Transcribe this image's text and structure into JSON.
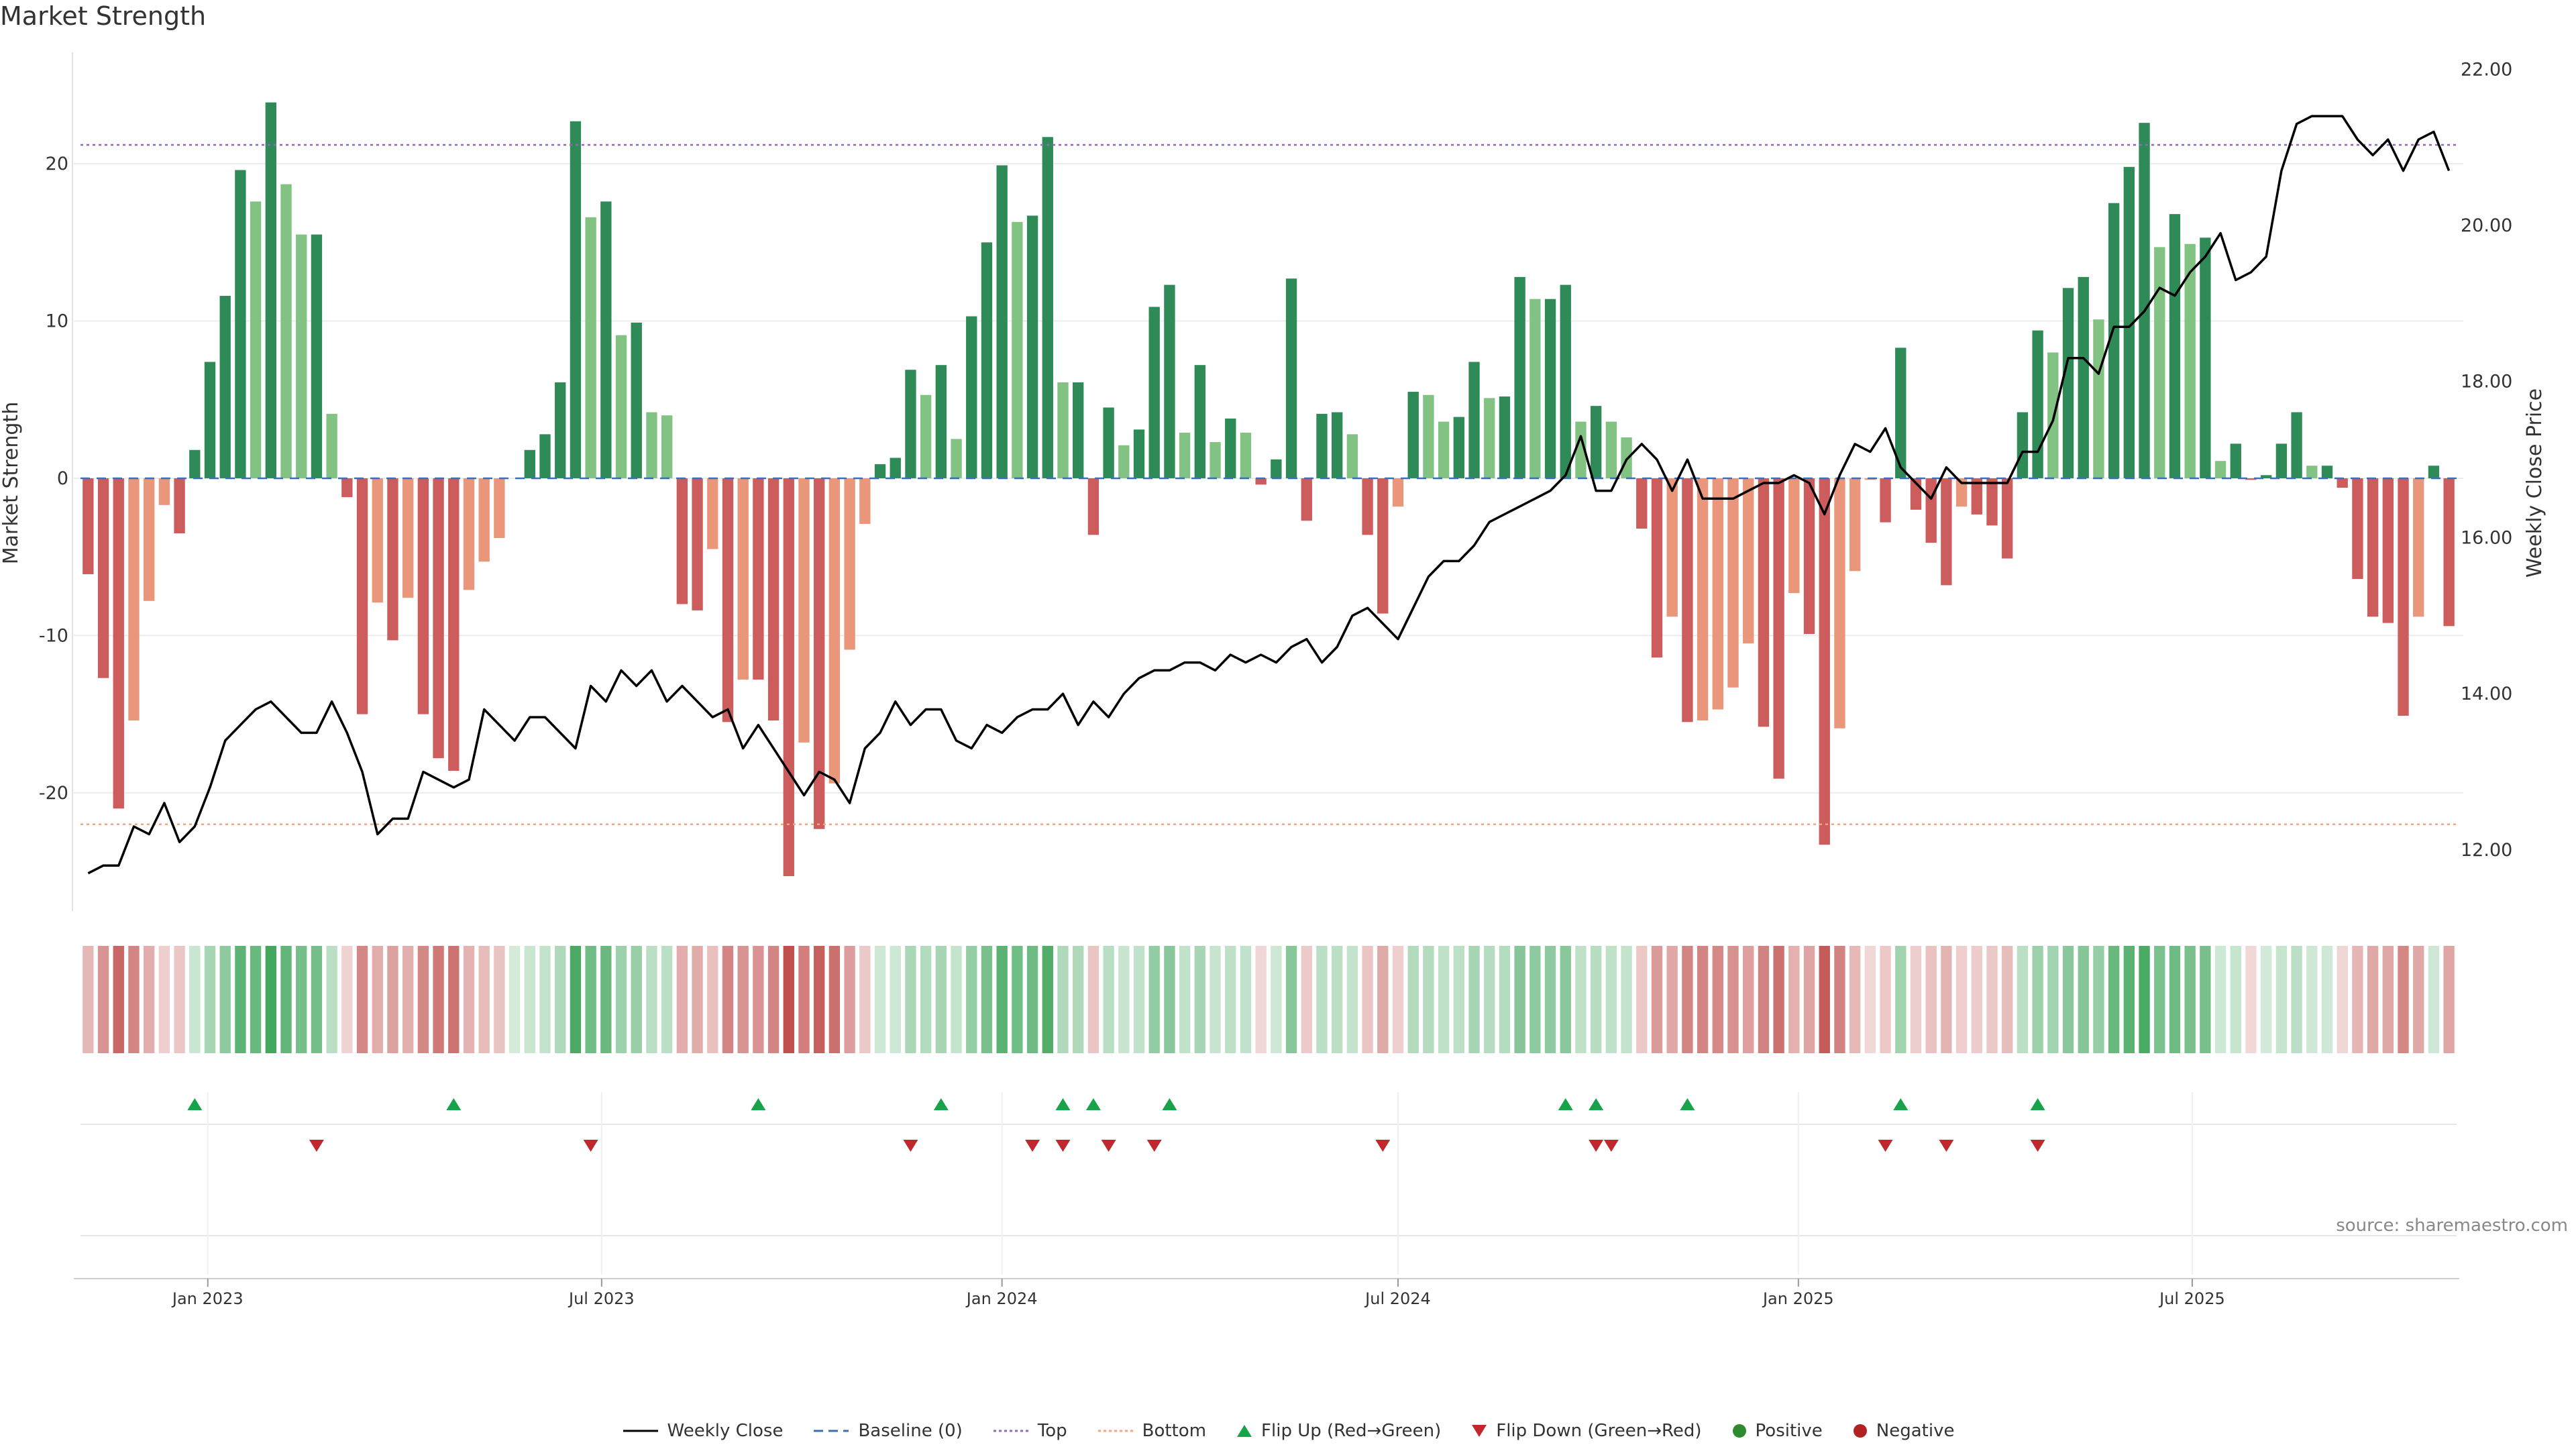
{
  "title": "Market Strength",
  "source": "source: sharemaestro.com",
  "colors": {
    "dark_green": "#2e8b57",
    "light_green": "#82c283",
    "dark_red": "#cd5c5c",
    "light_red": "#e9967a",
    "line": "#000000",
    "baseline": "#3b6fb6",
    "top": "#9467bd",
    "bottom": "#f4a582",
    "flip_up": "#16a34a",
    "flip_down": "#c0282d",
    "positive": "#2e8b2e",
    "negative": "#b22222"
  },
  "legend": [
    {
      "label": "Weekly Close",
      "icon": "line-solid-icon"
    },
    {
      "label": "Baseline (0)",
      "icon": "line-dashed-icon"
    },
    {
      "label": "Top",
      "icon": "line-dotted-purple-icon"
    },
    {
      "label": "Bottom",
      "icon": "line-dotted-orange-icon"
    },
    {
      "label": "Flip Up (Red→Green)",
      "icon": "triangle-up-icon"
    },
    {
      "label": "Flip Down (Green→Red)",
      "icon": "triangle-down-icon"
    },
    {
      "label": "Positive",
      "icon": "green-dot-icon"
    },
    {
      "label": "Negative",
      "icon": "red-dot-icon"
    }
  ],
  "chart_data": {
    "type": "bar",
    "x_start": "2022-11-07",
    "x_unit": "weeks",
    "xlabel": "",
    "ylabel": "Market Strength",
    "y2label": "Weekly Close Price",
    "ylim": [
      -27.6,
      27.0
    ],
    "y2lim": [
      11.2,
      22.2
    ],
    "yticks": [
      -20,
      -10,
      0,
      10,
      20
    ],
    "y2ticks": [
      "12.00",
      "14.00",
      "16.00",
      "18.00",
      "20.00",
      "22.00"
    ],
    "xticks": [
      {
        "date": "2023-01-01",
        "label": "Jan 2023"
      },
      {
        "date": "2023-07-01",
        "label": "Jul 2023"
      },
      {
        "date": "2024-01-01",
        "label": "Jan 2024"
      },
      {
        "date": "2024-07-01",
        "label": "Jul 2024"
      },
      {
        "date": "2025-01-01",
        "label": "Jan 2025"
      },
      {
        "date": "2025-07-01",
        "label": "Jul 2025"
      }
    ],
    "top_line": 21.2,
    "bottom_line": -22.0,
    "grid": true,
    "legend_position": "bottom",
    "series": [
      {
        "name": "Market Strength",
        "values": [
          -6.1,
          -12.7,
          -21.0,
          -15.4,
          -7.8,
          -1.7,
          -3.5,
          1.8,
          7.4,
          11.6,
          19.6,
          17.6,
          23.9,
          18.7,
          15.5,
          15.5,
          4.1,
          -1.2,
          -15.0,
          -7.9,
          -10.3,
          -7.6,
          -15.0,
          -17.8,
          -18.6,
          -7.1,
          -5.3,
          -3.8,
          0,
          1.8,
          2.8,
          6.1,
          22.7,
          16.6,
          17.6,
          9.1,
          9.9,
          4.2,
          4.0,
          -8.0,
          -8.4,
          -4.5,
          -15.5,
          -12.8,
          -12.8,
          -15.4,
          -25.3,
          -16.8,
          -22.3,
          -19.4,
          -10.9,
          -2.9,
          0.9,
          1.3,
          6.9,
          5.3,
          7.2,
          2.5,
          10.3,
          15.0,
          19.9,
          16.3,
          16.7,
          21.7,
          6.1,
          6.1,
          -3.6,
          4.5,
          2.1,
          3.1,
          10.9,
          12.3,
          2.9,
          7.2,
          2.3,
          3.8,
          2.9,
          -0.4,
          1.2,
          12.7,
          -2.7,
          4.1,
          4.2,
          2.8,
          -3.6,
          -8.6,
          -1.8,
          5.5,
          5.3,
          3.6,
          3.9,
          7.4,
          5.1,
          5.2,
          12.8,
          11.4,
          11.4,
          12.3,
          3.6,
          4.6,
          3.6,
          2.6,
          -3.2,
          -11.4,
          -8.8,
          -15.5,
          -15.4,
          -14.7,
          -13.3,
          -10.5,
          -15.8,
          -19.1,
          -7.3,
          -9.9,
          -23.3,
          -15.9,
          -5.9,
          -0.1,
          -2.8,
          8.3,
          -2.0,
          -4.1,
          -6.8,
          -1.8,
          -2.3,
          -3.0,
          -5.1,
          4.2,
          9.4,
          8.0,
          12.1,
          12.8,
          10.1,
          17.5,
          19.8,
          22.6,
          14.7,
          16.8,
          14.9,
          15.3,
          1.1,
          2.2,
          -0.1,
          0.2,
          2.2,
          4.2,
          0.8,
          0.8,
          -0.6,
          -6.4,
          -8.8,
          -9.2,
          -15.1,
          -8.8,
          0.8,
          -9.4
        ]
      },
      {
        "name": "Weekly Close",
        "values": [
          11.7,
          11.8,
          11.8,
          12.3,
          12.2,
          12.6,
          12.1,
          12.3,
          12.8,
          13.4,
          13.6,
          13.8,
          13.9,
          13.7,
          13.5,
          13.5,
          13.9,
          13.5,
          13.0,
          12.2,
          12.4,
          12.4,
          13.0,
          12.9,
          12.8,
          12.9,
          13.8,
          13.6,
          13.4,
          13.7,
          13.7,
          13.5,
          13.3,
          14.1,
          13.9,
          14.3,
          14.1,
          14.3,
          13.9,
          14.1,
          13.9,
          13.7,
          13.8,
          13.3,
          13.6,
          13.3,
          13.0,
          12.7,
          13.0,
          12.9,
          12.6,
          13.3,
          13.5,
          13.9,
          13.6,
          13.8,
          13.8,
          13.4,
          13.3,
          13.6,
          13.5,
          13.7,
          13.8,
          13.8,
          14.0,
          13.6,
          13.9,
          13.7,
          14.0,
          14.2,
          14.3,
          14.3,
          14.4,
          14.4,
          14.3,
          14.5,
          14.4,
          14.5,
          14.4,
          14.6,
          14.7,
          14.4,
          14.6,
          15.0,
          15.1,
          14.9,
          14.7,
          15.1,
          15.5,
          15.7,
          15.7,
          15.9,
          16.2,
          16.3,
          16.4,
          16.5,
          16.6,
          16.8,
          17.3,
          16.6,
          16.6,
          17.0,
          17.2,
          17.0,
          16.6,
          17.0,
          16.5,
          16.5,
          16.5,
          16.6,
          16.7,
          16.7,
          16.8,
          16.7,
          16.3,
          16.8,
          17.2,
          17.1,
          17.4,
          16.9,
          16.7,
          16.5,
          16.9,
          16.7,
          16.7,
          16.7,
          16.7,
          17.1,
          17.1,
          17.5,
          18.3,
          18.3,
          18.1,
          18.7,
          18.7,
          18.9,
          19.2,
          19.1,
          19.4,
          19.6,
          19.9,
          19.3,
          19.4,
          19.6,
          20.7,
          21.3,
          21.4,
          21.4,
          21.4,
          21.1,
          20.9,
          21.1,
          20.7,
          21.1,
          21.2,
          20.7
        ]
      }
    ],
    "heat_strip": {
      "name": "Strength Band",
      "source": "Market Strength"
    },
    "flip_up_weeks": [
      7,
      24,
      44,
      56,
      64,
      66,
      71,
      97,
      99,
      105,
      119,
      128
    ],
    "flip_down_weeks": [
      15,
      33,
      54,
      62,
      64,
      67,
      70,
      85,
      99,
      100,
      118,
      122,
      128
    ]
  }
}
